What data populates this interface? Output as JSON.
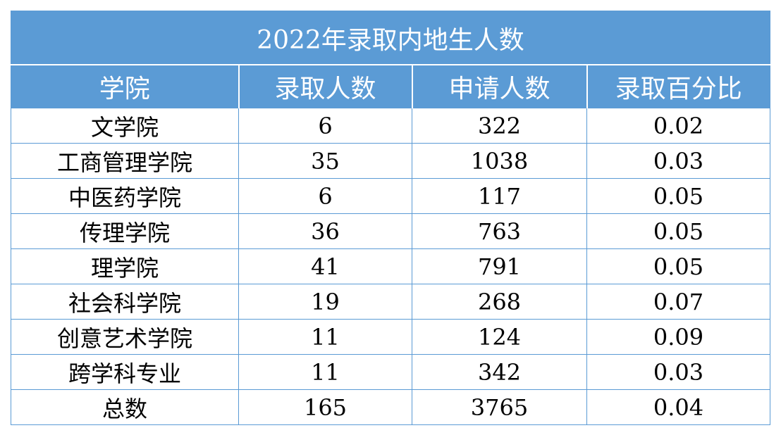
{
  "table": {
    "title": "2022年录取内地生人数",
    "headers": [
      "学院",
      "录取人数",
      "申请人数",
      "录取百分比"
    ],
    "rows": [
      [
        "文学院",
        "6",
        "322",
        "0.02"
      ],
      [
        "工商管理学院",
        "35",
        "1038",
        "0.03"
      ],
      [
        "中医药学院",
        "6",
        "117",
        "0.05"
      ],
      [
        "传理学院",
        "36",
        "763",
        "0.05"
      ],
      [
        "理学院",
        "41",
        "791",
        "0.05"
      ],
      [
        "社会科学院",
        "19",
        "268",
        "0.07"
      ],
      [
        "创意艺术学院",
        "11",
        "124",
        "0.09"
      ],
      [
        "跨学科专业",
        "11",
        "342",
        "0.03"
      ],
      [
        "总数",
        "165",
        "3765",
        "0.04"
      ]
    ]
  },
  "colors": {
    "header_bg": "#5b9bd5",
    "header_text": "#ffffff",
    "border": "#5b9bd5"
  }
}
